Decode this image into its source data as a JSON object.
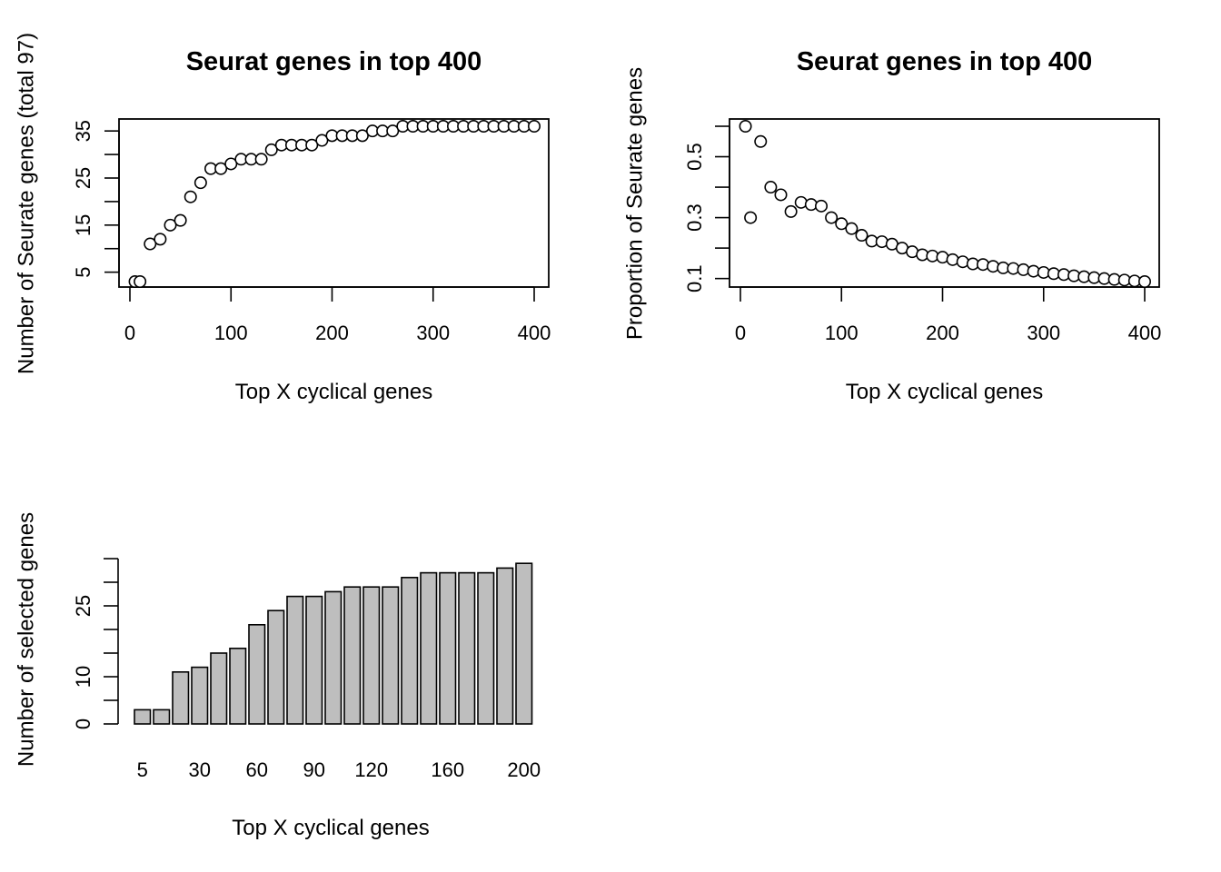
{
  "chart_data": [
    {
      "type": "scatter",
      "title": "Seurat genes in top 400",
      "xlabel": "Top X cyclical genes",
      "ylabel": "Number of Seurate genes (total 97)",
      "xlim": [
        0,
        400
      ],
      "ylim": [
        3,
        36
      ],
      "xticks": [
        0,
        100,
        200,
        300,
        400
      ],
      "yticks": [
        5,
        10,
        15,
        20,
        25,
        30,
        35
      ],
      "ytick_labels": [
        5,
        15,
        25,
        35
      ],
      "x": [
        5,
        10,
        20,
        30,
        40,
        50,
        60,
        70,
        80,
        90,
        100,
        110,
        120,
        130,
        140,
        150,
        160,
        170,
        180,
        190,
        200,
        210,
        220,
        230,
        240,
        250,
        260,
        270,
        280,
        290,
        300,
        310,
        320,
        330,
        340,
        350,
        360,
        370,
        380,
        390,
        400
      ],
      "y": [
        3,
        3,
        11,
        12,
        15,
        16,
        21,
        24,
        27,
        27,
        28,
        29,
        29,
        29,
        31,
        32,
        32,
        32,
        32,
        33,
        34,
        34,
        34,
        34,
        35,
        35,
        35,
        36,
        36,
        36,
        36,
        36,
        36,
        36,
        36,
        36,
        36,
        36,
        36,
        36,
        36
      ]
    },
    {
      "type": "scatter",
      "title": "Seurat genes in top 400",
      "xlabel": "Top X cyclical genes",
      "ylabel": "Proportion of Seurate genes",
      "xlim": [
        0,
        400
      ],
      "ylim": [
        0.09,
        0.6
      ],
      "xticks": [
        0,
        100,
        200,
        300,
        400
      ],
      "yticks": [
        0.1,
        0.2,
        0.3,
        0.4,
        0.5,
        0.6
      ],
      "ytick_labels": [
        0.1,
        0.3,
        0.5
      ],
      "x": [
        5,
        10,
        20,
        30,
        40,
        50,
        60,
        70,
        80,
        90,
        100,
        110,
        120,
        130,
        140,
        150,
        160,
        170,
        180,
        190,
        200,
        210,
        220,
        230,
        240,
        250,
        260,
        270,
        280,
        290,
        300,
        310,
        320,
        330,
        340,
        350,
        360,
        370,
        380,
        390,
        400
      ],
      "y": [
        0.6,
        0.3,
        0.55,
        0.4,
        0.375,
        0.32,
        0.35,
        0.343,
        0.338,
        0.3,
        0.28,
        0.264,
        0.242,
        0.223,
        0.221,
        0.213,
        0.2,
        0.188,
        0.178,
        0.174,
        0.17,
        0.162,
        0.155,
        0.148,
        0.146,
        0.14,
        0.135,
        0.133,
        0.129,
        0.124,
        0.12,
        0.116,
        0.113,
        0.109,
        0.106,
        0.103,
        0.1,
        0.097,
        0.095,
        0.092,
        0.09
      ]
    },
    {
      "type": "bar",
      "title": "",
      "xlabel": "Top X cyclical genes",
      "ylabel": "Number of selected genes",
      "ylim": [
        0,
        35
      ],
      "yticks": [
        0,
        5,
        10,
        15,
        20,
        25,
        30,
        35
      ],
      "ytick_labels": [
        0,
        10,
        25
      ],
      "categories": [
        5,
        10,
        20,
        30,
        40,
        50,
        60,
        70,
        80,
        90,
        100,
        110,
        120,
        130,
        140,
        150,
        160,
        170,
        180,
        190,
        200
      ],
      "category_labels": [
        "5",
        "",
        "",
        "30",
        "",
        "",
        "60",
        "",
        "",
        "90",
        "",
        "",
        "120",
        "",
        "",
        "",
        "160",
        "",
        "",
        "",
        "200"
      ],
      "values": [
        3,
        3,
        11,
        12,
        15,
        16,
        21,
        24,
        27,
        27,
        28,
        29,
        29,
        29,
        31,
        32,
        32,
        32,
        32,
        33,
        34
      ]
    }
  ]
}
